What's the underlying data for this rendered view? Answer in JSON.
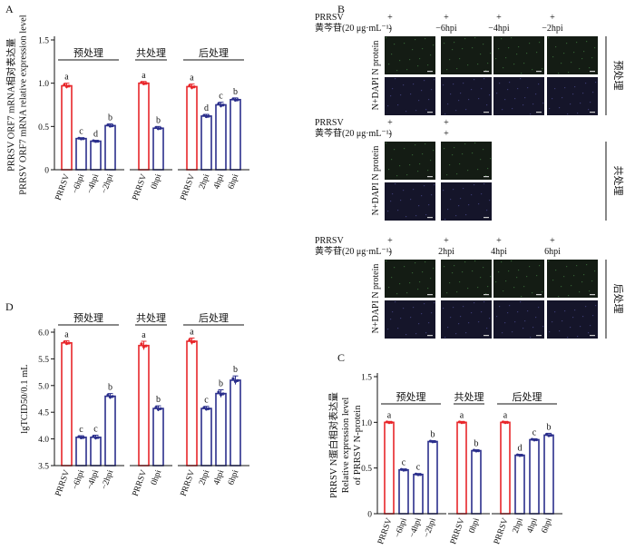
{
  "colors": {
    "control": "#e8262a",
    "treated": "#2b2f8c",
    "axis": "#111111"
  },
  "panel_labels": {
    "a": "A",
    "b": "B",
    "c": "C",
    "d": "D"
  },
  "chart_data": [
    {
      "panel": "A",
      "type": "bar",
      "ylabel_lines": [
        "PRRSV ORF7 mRNA相对表达量",
        "PRRSV ORF7 mRNA relative expression level"
      ],
      "ylim": [
        0,
        1.5
      ],
      "yticks": [
        "0",
        "0.5",
        "1.0",
        "1.5"
      ],
      "groups": [
        {
          "label": "预处理",
          "categories": [
            "PRRSV",
            "−6hpi",
            "−4hpi",
            "−2hpi"
          ],
          "values": [
            0.97,
            0.36,
            0.33,
            0.51
          ],
          "errors": [
            0.03,
            0.01,
            0.01,
            0.02
          ],
          "letters": [
            "a",
            "c",
            "d",
            "b"
          ]
        },
        {
          "label": "共处理",
          "categories": [
            "PRRSV",
            "0hpi"
          ],
          "values": [
            1.0,
            0.48
          ],
          "errors": [
            0.02,
            0.02
          ],
          "letters": [
            "a",
            "b"
          ]
        },
        {
          "label": "后处理",
          "categories": [
            "PRRSV",
            "2hpi",
            "4hpi",
            "6hpi"
          ],
          "values": [
            0.96,
            0.62,
            0.75,
            0.81
          ],
          "errors": [
            0.03,
            0.02,
            0.03,
            0.02
          ],
          "letters": [
            "a",
            "d",
            "c",
            "b"
          ]
        }
      ]
    },
    {
      "panel": "C",
      "type": "bar",
      "ylabel_lines": [
        "PRRSV N蛋白相对表达量",
        "Relative expression level",
        "of PRRSV N-protein"
      ],
      "ylim": [
        0,
        1.5
      ],
      "yticks": [
        "0",
        "0.5",
        "1.0",
        "1.5"
      ],
      "groups": [
        {
          "label": "预处理",
          "categories": [
            "PRRSV",
            "−6hpi",
            "−4hpi",
            "−2hpi"
          ],
          "values": [
            1.0,
            0.48,
            0.43,
            0.79
          ],
          "errors": [
            0.01,
            0.01,
            0.01,
            0.01
          ],
          "letters": [
            "a",
            "c",
            "c",
            "b"
          ]
        },
        {
          "label": "共处理",
          "categories": [
            "PRRSV",
            "0hpi"
          ],
          "values": [
            1.0,
            0.69
          ],
          "errors": [
            0.01,
            0.01
          ],
          "letters": [
            "a",
            "b"
          ]
        },
        {
          "label": "后处理",
          "categories": [
            "PRRSV",
            "2hpi",
            "4hpi",
            "6hpi"
          ],
          "values": [
            1.0,
            0.64,
            0.81,
            0.86
          ],
          "errors": [
            0.01,
            0.01,
            0.01,
            0.02
          ],
          "letters": [
            "a",
            "d",
            "c",
            "b"
          ]
        }
      ]
    },
    {
      "panel": "D",
      "type": "bar",
      "ylabel_lines": [
        "lgTCID50/0.1 mL"
      ],
      "ylim": [
        3.5,
        6.0
      ],
      "yticks": [
        "3.5",
        "4.0",
        "4.5",
        "5.0",
        "5.5",
        "6.0"
      ],
      "groups": [
        {
          "label": "预处理",
          "categories": [
            "PRRSV",
            "−6hpi",
            "−4hpi",
            "−2hpi"
          ],
          "values": [
            5.8,
            4.03,
            4.03,
            4.8
          ],
          "errors": [
            0.04,
            0.03,
            0.04,
            0.05
          ],
          "letters": [
            "a",
            "c",
            "c",
            "b"
          ]
        },
        {
          "label": "共处理",
          "categories": [
            "PRRSV",
            "0hpi"
          ],
          "values": [
            5.75,
            4.57
          ],
          "errors": [
            0.08,
            0.05
          ],
          "letters": [
            "a",
            "b"
          ]
        },
        {
          "label": "后处理",
          "categories": [
            "PRRSV",
            "2hpi",
            "4hpi",
            "6hpi"
          ],
          "values": [
            5.83,
            4.57,
            4.85,
            5.1
          ],
          "errors": [
            0.06,
            0.04,
            0.07,
            0.08
          ],
          "letters": [
            "a",
            "c",
            "b",
            "b"
          ]
        }
      ]
    }
  ],
  "panel_b": {
    "row_label": "N+DAPI N protein",
    "blocks": [
      {
        "treatment": "预处理",
        "header_rows": [
          {
            "name": "PRRSV",
            "values": [
              "+",
              "+",
              "+",
              "+"
            ]
          },
          {
            "name": "黄芩苷(20 μg·mL⁻¹)",
            "values": [
              "-",
              "−6hpi",
              "−4hpi",
              "−2hpi"
            ]
          }
        ]
      },
      {
        "treatment": "共处理",
        "header_rows": [
          {
            "name": "PRRSV",
            "values": [
              "+",
              "+"
            ]
          },
          {
            "name": "黄芩苷(20 μg·mL⁻¹)",
            "values": [
              "-",
              "+"
            ]
          }
        ]
      },
      {
        "treatment": "后处理",
        "header_rows": [
          {
            "name": "PRRSV",
            "values": [
              "+",
              "+",
              "+",
              "+"
            ]
          },
          {
            "name": "黄芩苷(20 μg·mL⁻¹)",
            "values": [
              "-",
              "2hpi",
              "4hpi",
              "6hpi"
            ]
          }
        ]
      }
    ]
  }
}
